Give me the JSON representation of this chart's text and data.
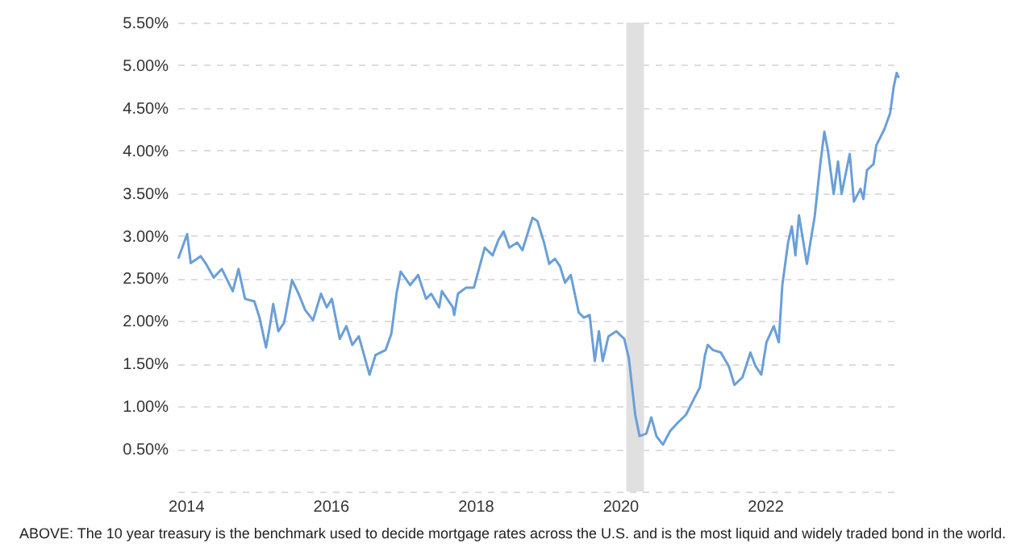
{
  "chart_data": {
    "type": "line",
    "x": [
      "2013-11-24",
      "2014-01-08",
      "2014-01-26",
      "2014-03-17",
      "2014-04-13",
      "2014-05-22",
      "2014-07-02",
      "2014-08-26",
      "2014-09-24",
      "2014-10-27",
      "2014-12-13",
      "2015-01-08",
      "2015-02-10",
      "2015-03-04",
      "2015-03-18",
      "2015-04-13",
      "2015-05-12",
      "2015-06-21",
      "2015-07-24",
      "2015-08-26",
      "2015-10-05",
      "2015-11-14",
      "2015-12-13",
      "2016-01-08",
      "2016-02-17",
      "2016-03-21",
      "2016-04-20",
      "2016-05-23",
      "2016-07-16",
      "2016-08-15",
      "2016-10-05",
      "2016-11-03",
      "2016-11-29",
      "2016-12-20",
      "2017-02-06",
      "2017-03-18",
      "2017-04-27",
      "2017-05-23",
      "2017-07-02",
      "2017-07-16",
      "2017-09-09",
      "2017-09-16",
      "2017-10-05",
      "2017-11-14",
      "2017-12-24",
      "2018-02-17",
      "2018-03-29",
      "2018-04-27",
      "2018-05-23",
      "2018-06-21",
      "2018-07-31",
      "2018-08-26",
      "2018-10-16",
      "2018-11-10",
      "2018-12-13",
      "2019-01-08",
      "2019-02-06",
      "2019-03-04",
      "2019-03-29",
      "2019-04-27",
      "2019-06-06",
      "2019-07-02",
      "2019-07-31",
      "2019-08-26",
      "2019-09-16",
      "2019-10-05",
      "2019-11-03",
      "2019-12-13",
      "2020-01-22",
      "2020-02-14",
      "2020-03-17",
      "2020-04-08",
      "2020-05-12",
      "2020-06-06",
      "2020-07-02",
      "2020-08-04",
      "2020-09-09",
      "2020-10-19",
      "2020-11-28",
      "2021-01-08",
      "2021-02-06",
      "2021-03-04",
      "2021-03-18",
      "2021-04-13",
      "2021-05-23",
      "2021-07-02",
      "2021-07-31",
      "2021-09-09",
      "2021-10-19",
      "2021-11-14",
      "2021-12-13",
      "2022-01-08",
      "2022-02-14",
      "2022-03-11",
      "2022-03-29",
      "2022-04-27",
      "2022-05-16",
      "2022-06-03",
      "2022-06-21",
      "2022-07-31",
      "2022-09-09",
      "2022-10-05",
      "2022-10-27",
      "2022-11-14",
      "2022-12-13",
      "2023-01-04",
      "2023-01-22",
      "2023-03-04",
      "2023-03-25",
      "2023-04-27",
      "2023-05-12",
      "2023-05-30",
      "2023-07-02",
      "2023-07-16",
      "2023-08-26",
      "2023-09-24",
      "2023-10-12",
      "2023-10-27",
      "2023-11-07"
    ],
    "series": [
      {
        "color": "#6a9fd8",
        "values": [
          2.73,
          3.02,
          2.68,
          2.76,
          2.67,
          2.51,
          2.61,
          2.35,
          2.61,
          2.26,
          2.23,
          2.04,
          1.69,
          1.98,
          2.2,
          1.88,
          1.98,
          2.48,
          2.32,
          2.13,
          2.01,
          2.32,
          2.16,
          2.26,
          1.79,
          1.94,
          1.72,
          1.82,
          1.37,
          1.6,
          1.66,
          1.85,
          2.32,
          2.58,
          2.42,
          2.54,
          2.26,
          2.32,
          2.16,
          2.35,
          2.16,
          2.07,
          2.32,
          2.39,
          2.39,
          2.86,
          2.77,
          2.95,
          3.05,
          2.86,
          2.92,
          2.83,
          3.21,
          3.17,
          2.92,
          2.67,
          2.73,
          2.64,
          2.45,
          2.54,
          2.1,
          2.04,
          2.07,
          1.53,
          1.88,
          1.53,
          1.82,
          1.88,
          1.79,
          1.56,
          0.9,
          0.65,
          0.68,
          0.87,
          0.65,
          0.55,
          0.71,
          0.81,
          0.9,
          1.09,
          1.22,
          1.6,
          1.72,
          1.66,
          1.63,
          1.47,
          1.25,
          1.34,
          1.63,
          1.47,
          1.37,
          1.75,
          1.94,
          1.75,
          2.42,
          2.92,
          3.11,
          2.77,
          3.24,
          2.67,
          3.24,
          3.81,
          4.22,
          4.0,
          3.49,
          3.87,
          3.49,
          3.96,
          3.4,
          3.55,
          3.43,
          3.77,
          3.84,
          4.06,
          4.25,
          4.44,
          4.75,
          4.91,
          4.85
        ]
      }
    ],
    "xlim": [
      "2013-11-20",
      "2023-11-13"
    ],
    "xticks": [
      "2014",
      "2016",
      "2018",
      "2020",
      "2022"
    ],
    "ylim": [
      0,
      5.5
    ],
    "yticks": [
      {
        "value": 0,
        "label": null
      },
      {
        "value": 0.5,
        "label": "0.50%"
      },
      {
        "value": 1,
        "label": "1.00%"
      },
      {
        "value": 1.5,
        "label": "1.50%"
      },
      {
        "value": 2,
        "label": "2.00%"
      },
      {
        "value": 2.5,
        "label": "2.50%"
      },
      {
        "value": 3,
        "label": "3.00%"
      },
      {
        "value": 3.5,
        "label": "3.50%"
      },
      {
        "value": 4,
        "label": "4.00%"
      },
      {
        "value": 4.5,
        "label": "4.50%"
      },
      {
        "value": 5,
        "label": "5.00%"
      },
      {
        "value": 5.5,
        "label": "5.50%"
      }
    ],
    "bands": [
      {
        "axis": "x",
        "from": "2020-02-01",
        "to": "2020-04-30",
        "color": "#e0e0e0"
      }
    ],
    "grid": "y",
    "annotations": [
      "ABOVE: The 10 year treasury is the benchmark used to decide mortgage rates across the U.S. and is the most liquid and widely traded bond in the world."
    ]
  }
}
